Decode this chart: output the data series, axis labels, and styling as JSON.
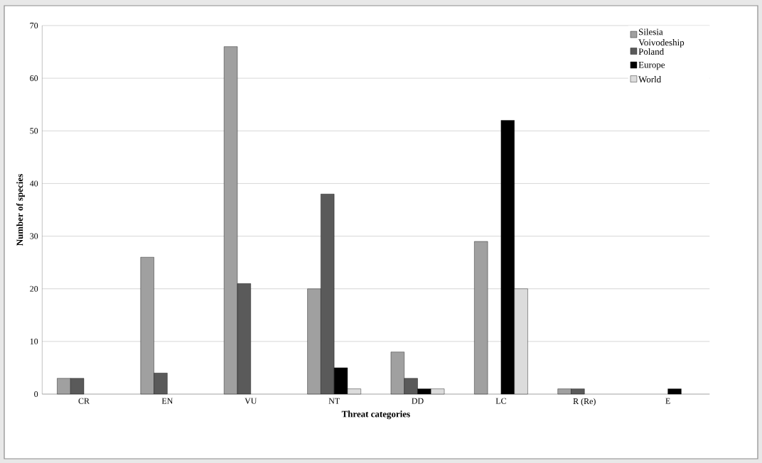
{
  "chart_data": {
    "type": "bar",
    "xlabel": "Threat categories",
    "ylabel": "Number of species",
    "categories": [
      "CR",
      "EN",
      "VU",
      "NT",
      "DD",
      "LC",
      "R (Re)",
      "E"
    ],
    "series": [
      {
        "name": "Silesia Voivodeship",
        "color": "#a0a0a0",
        "values": [
          3,
          26,
          66,
          20,
          8,
          29,
          1,
          null
        ]
      },
      {
        "name": "Poland",
        "color": "#5a5a5a",
        "values": [
          3,
          4,
          21,
          38,
          3,
          null,
          1,
          null
        ]
      },
      {
        "name": "Europe",
        "color": "#000000",
        "values": [
          null,
          null,
          null,
          5,
          1,
          52,
          null,
          1
        ]
      },
      {
        "name": "World",
        "color": "#dcdcdc",
        "values": [
          null,
          null,
          null,
          1,
          1,
          20,
          null,
          null
        ]
      }
    ],
    "ylim": [
      0,
      70
    ],
    "yticks": [
      0,
      10,
      20,
      30,
      40,
      50,
      60,
      70
    ],
    "grid": "y",
    "legend": "top right"
  }
}
